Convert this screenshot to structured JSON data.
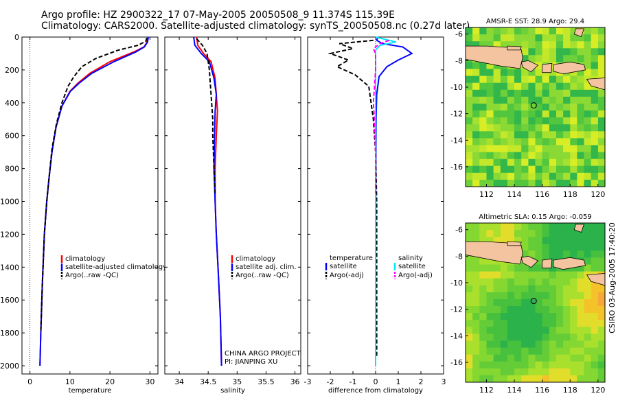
{
  "header": {
    "title_line1": "Argo profile: HZ 2900322_17 07-May-2005 20050508_9 11.374S 115.39E",
    "title_line2": "Climatology: CARS2000. Satellite-adjusted climatology: synTS_20050508.nc (0.27d later)"
  },
  "credit": "CSIRO 03-Aug-2005 17:40:20",
  "chart_data": [
    {
      "type": "line",
      "panel": "temperature",
      "xlabel": "temperature",
      "xlim": [
        -2,
        32
      ],
      "xticks": [
        0,
        10,
        20,
        30
      ],
      "ylim": [
        2050,
        0
      ],
      "yticks": [
        0,
        200,
        400,
        600,
        800,
        1000,
        1200,
        1400,
        1600,
        1800,
        2000
      ],
      "legend": [
        "climatology",
        "satellite-adjusted climatology",
        "Argo(..raw -QC)"
      ],
      "series": [
        {
          "name": "climatology",
          "color": "#ff0000",
          "style": "solid",
          "x": [
            29.5,
            29.3,
            28.5,
            26.0,
            20.0,
            15.0,
            12.0,
            10.0,
            8.0,
            6.5,
            5.5,
            4.8,
            4.2,
            3.6,
            3.1,
            2.7,
            2.5
          ],
          "y": [
            0,
            30,
            60,
            90,
            150,
            220,
            280,
            330,
            420,
            550,
            700,
            850,
            1000,
            1200,
            1500,
            1800,
            2000
          ]
        },
        {
          "name": "satellite-adjusted climatology",
          "color": "#0000ff",
          "style": "solid",
          "x": [
            29.6,
            29.4,
            28.6,
            26.5,
            21.0,
            15.5,
            12.3,
            10.1,
            8.0,
            6.5,
            5.5,
            4.8,
            4.2,
            3.6,
            3.1,
            2.7,
            2.5
          ],
          "y": [
            0,
            30,
            60,
            90,
            150,
            220,
            280,
            330,
            420,
            550,
            700,
            850,
            1000,
            1200,
            1500,
            1800,
            2000
          ]
        },
        {
          "name": "Argo(..raw -QC)",
          "color": "#000000",
          "style": "dashed",
          "x": [
            29.2,
            29.0,
            27.0,
            22.0,
            16.5,
            13.0,
            11.0,
            9.5,
            8.0,
            6.6,
            5.5,
            4.8,
            4.2,
            3.6,
            3.1,
            2.7
          ],
          "y": [
            5,
            25,
            50,
            80,
            130,
            180,
            240,
            300,
            400,
            530,
            680,
            850,
            1000,
            1200,
            1500,
            1800
          ]
        }
      ]
    },
    {
      "type": "line",
      "panel": "salinity",
      "xlabel": "salinity",
      "xlim": [
        33.75,
        36.1
      ],
      "xticks": [
        34,
        34.5,
        35,
        35.5,
        36
      ],
      "ylim": [
        2050,
        0
      ],
      "legend": [
        "climatology",
        "satellite adj. clim.",
        "Argo(..raw -QC)"
      ],
      "annotations": [
        "CHINA ARGO PROJECT",
        "PI: JIANPING XU"
      ],
      "series": [
        {
          "name": "climatology",
          "color": "#ff0000",
          "style": "solid",
          "x": [
            34.3,
            34.32,
            34.42,
            34.55,
            34.62,
            34.64,
            34.66,
            34.64,
            34.62,
            34.62,
            34.64,
            34.67,
            34.71,
            34.73
          ],
          "y": [
            0,
            50,
            100,
            150,
            250,
            350,
            450,
            600,
            800,
            1000,
            1200,
            1400,
            1700,
            2000
          ]
        },
        {
          "name": "satellite adj. clim.",
          "color": "#0000ff",
          "style": "solid",
          "x": [
            34.25,
            34.27,
            34.38,
            34.52,
            34.6,
            34.64,
            34.62,
            34.61,
            34.6,
            34.62,
            34.64,
            34.67,
            34.71,
            34.73
          ],
          "y": [
            0,
            50,
            100,
            150,
            250,
            350,
            450,
            600,
            800,
            1000,
            1200,
            1400,
            1700,
            2000
          ]
        },
        {
          "name": "Argo(..raw -QC)",
          "color": "#000000",
          "style": "dashed",
          "x": [
            34.3,
            34.4,
            34.48,
            34.52,
            34.56,
            34.58,
            34.58,
            34.6,
            34.62
          ],
          "y": [
            10,
            50,
            100,
            200,
            400,
            500,
            600,
            800,
            950
          ]
        }
      ]
    },
    {
      "type": "line",
      "panel": "difference from climatology",
      "xlabel": "difference from climatology",
      "xlim": [
        -3,
        3
      ],
      "xticks": [
        -3,
        -2,
        -1,
        0,
        1,
        2,
        3
      ],
      "ylim": [
        2050,
        0
      ],
      "legend": [
        "temperature",
        "satellite",
        "Argo(-adj)",
        "salinity",
        "satellite",
        "Argo(-adj)"
      ],
      "series": [
        {
          "name": "temperature satellite",
          "color": "#0000ff",
          "style": "solid",
          "x": [
            0.1,
            0.05,
            0.3,
            1.2,
            1.6,
            1.0,
            0.5,
            0.15,
            0.05,
            0.02,
            0.01,
            0.0,
            0.0,
            0.0
          ],
          "y": [
            0,
            20,
            40,
            60,
            100,
            140,
            180,
            240,
            350,
            500,
            800,
            1200,
            1600,
            2000
          ]
        },
        {
          "name": "temperature Argo(-adj)",
          "color": "#000000",
          "style": "dashed",
          "x": [
            -0.1,
            -1.6,
            -1.0,
            -2.0,
            -1.2,
            -1.7,
            -0.9,
            -0.3,
            -0.2,
            -0.1,
            0.0,
            0.05,
            0.05,
            0.05
          ],
          "y": [
            20,
            40,
            70,
            100,
            140,
            180,
            230,
            300,
            400,
            500,
            700,
            1000,
            1500,
            1950
          ]
        },
        {
          "name": "salinity satellite",
          "color": "#00e5ff",
          "style": "solid",
          "x": [
            0.0,
            0.9,
            0.2,
            0.0,
            0.0,
            0.0,
            0.0,
            0.0,
            0.0
          ],
          "y": [
            0,
            30,
            50,
            80,
            200,
            600,
            1000,
            1500,
            2000
          ]
        },
        {
          "name": "salinity Argo(-adj)",
          "color": "#ff00ff",
          "style": "dashed",
          "x": [
            0.6,
            0.2,
            -0.1,
            0.0,
            0.0,
            -0.1,
            -0.05,
            0.0,
            0.0
          ],
          "y": [
            20,
            40,
            70,
            100,
            200,
            400,
            500,
            700,
            950
          ]
        }
      ]
    },
    {
      "type": "heatmap",
      "panel": "map-top",
      "title": "AMSR-E SST: 28.9 Argo: 29.4",
      "xlim": [
        110.5,
        120.5
      ],
      "xticks": [
        112,
        114,
        116,
        118,
        120
      ],
      "ylim": [
        -17.5,
        -5.5
      ],
      "yticks": [
        -6,
        -8,
        -10,
        -12,
        -14,
        -16
      ],
      "argo_position": {
        "lon": 115.39,
        "lat": -11.374
      }
    },
    {
      "type": "heatmap",
      "panel": "map-bottom",
      "title": "Altimetric SLA: 0.15 Argo: -0.059",
      "xlim": [
        110.5,
        120.5
      ],
      "xticks": [
        112,
        114,
        116,
        118,
        120
      ],
      "ylim": [
        -17.5,
        -5.5
      ],
      "yticks": [
        -6,
        -8,
        -10,
        -12,
        -14,
        -16
      ],
      "argo_position": {
        "lon": 115.39,
        "lat": -11.374
      }
    }
  ]
}
